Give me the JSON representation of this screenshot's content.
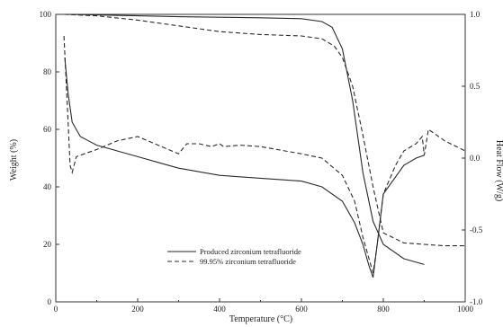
{
  "chart_data": {
    "type": "line",
    "title": "",
    "xlabel": "Temperature (°C)",
    "ylabel_left": "Weight (%)",
    "ylabel_right": "Heat Flow (W/g)",
    "xlim": [
      0,
      1000
    ],
    "ylim_left": [
      0,
      100
    ],
    "ylim_right": [
      -1.0,
      1.0
    ],
    "x_ticks": [
      "0",
      "200",
      "400",
      "600",
      "800",
      "1000"
    ],
    "y_left_ticks": [
      "0",
      "20",
      "40",
      "60",
      "80",
      "100"
    ],
    "y_right_ticks": [
      "-1.0",
      "-0.5",
      "0.0",
      "0.5",
      "1.0"
    ],
    "grid": false,
    "legend_placement": "bottom-center",
    "series": [
      {
        "name": "Produced zirconium tetrafluoride",
        "style": "solid",
        "axis": "left",
        "quantity": "weight",
        "x": [
          20,
          100,
          200,
          300,
          400,
          500,
          600,
          650,
          675,
          700,
          725,
          750,
          775,
          800,
          850,
          900
        ],
        "y": [
          100,
          99.8,
          99.5,
          99.2,
          99,
          98.8,
          98.5,
          97.5,
          95.5,
          88,
          70,
          45,
          28,
          20,
          15,
          13
        ]
      },
      {
        "name": "99.95% zirconium tetrafluoride",
        "style": "dashed",
        "axis": "left",
        "quantity": "weight",
        "x": [
          20,
          100,
          200,
          300,
          400,
          500,
          600,
          650,
          680,
          700,
          725,
          750,
          775,
          800,
          850,
          900,
          950,
          1000
        ],
        "y": [
          100,
          99.5,
          98,
          96,
          94,
          93,
          92.5,
          91.5,
          89,
          85,
          75,
          58,
          40,
          24,
          20.5,
          20,
          19.5,
          19.5
        ]
      },
      {
        "name": "Produced zirconium tetrafluoride",
        "style": "solid",
        "axis": "right",
        "quantity": "heat_flow",
        "x": [
          22,
          30,
          40,
          60,
          80,
          100,
          150,
          200,
          250,
          300,
          400,
          500,
          600,
          650,
          700,
          730,
          750,
          765,
          775,
          785,
          800,
          850,
          880,
          900
        ],
        "y": [
          0.7,
          0.45,
          0.25,
          0.15,
          0.12,
          0.09,
          0.05,
          0.01,
          -0.03,
          -0.07,
          -0.12,
          -0.14,
          -0.16,
          -0.2,
          -0.3,
          -0.45,
          -0.6,
          -0.75,
          -0.83,
          -0.6,
          -0.25,
          -0.05,
          0.0,
          0.02
        ]
      },
      {
        "name": "99.95% zirconium tetrafluoride",
        "style": "dashed",
        "axis": "right",
        "quantity": "heat_flow",
        "x": [
          20,
          25,
          30,
          35,
          40,
          50,
          70,
          100,
          150,
          200,
          250,
          300,
          320,
          350,
          380,
          400,
          410,
          450,
          500,
          600,
          650,
          700,
          730,
          750,
          765,
          775,
          785,
          800,
          830,
          850,
          880,
          895,
          900,
          910,
          950,
          1000
        ],
        "y": [
          0.85,
          0.55,
          0.25,
          -0.05,
          -0.1,
          0.01,
          0.03,
          0.06,
          0.12,
          0.15,
          0.09,
          0.03,
          0.1,
          0.1,
          0.08,
          0.1,
          0.08,
          0.09,
          0.08,
          0.03,
          0.0,
          -0.12,
          -0.3,
          -0.55,
          -0.7,
          -0.8,
          -0.6,
          -0.25,
          -0.05,
          0.05,
          0.1,
          0.15,
          0.02,
          0.2,
          0.12,
          0.05
        ]
      }
    ]
  }
}
